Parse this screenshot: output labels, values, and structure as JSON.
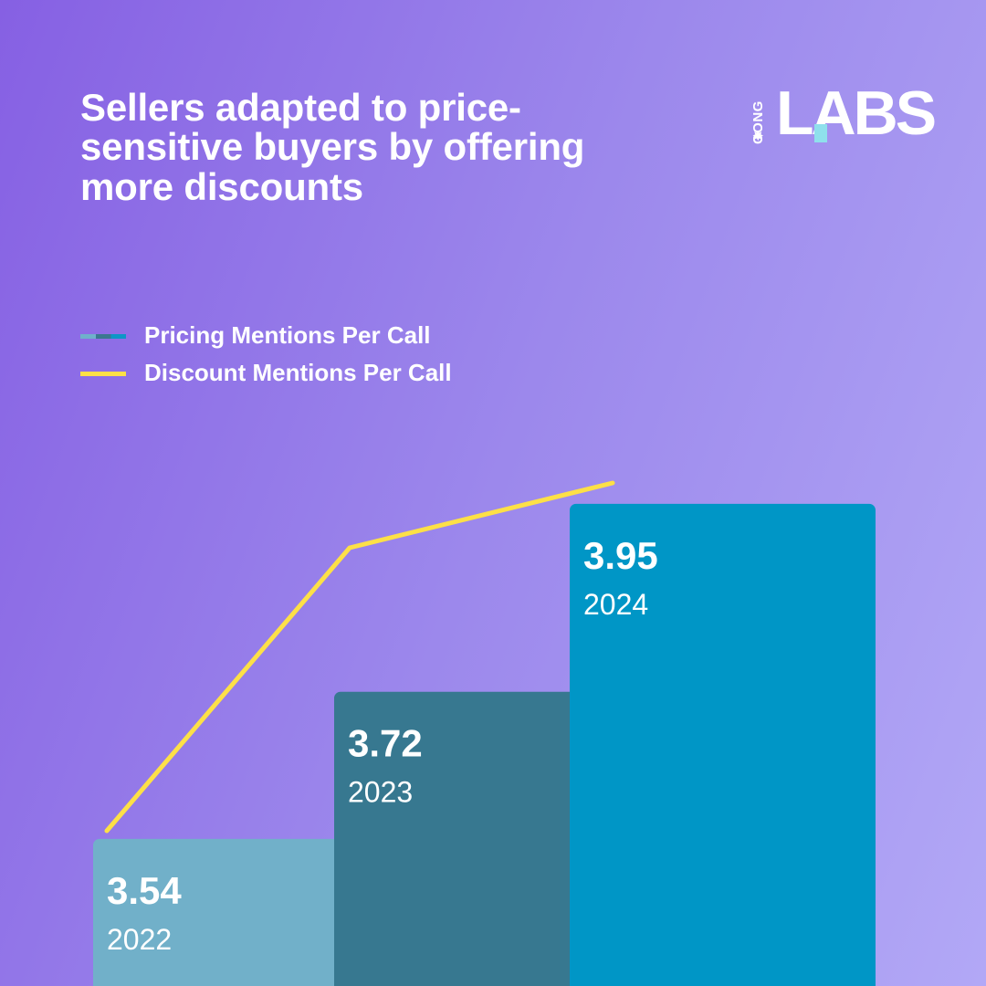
{
  "header": {
    "title": "Sellers adapted to price-sensitive buyers by offering more discounts"
  },
  "logo": {
    "small_text": "GONG",
    "main_text": "LABS",
    "star_icon": "burst-star-icon"
  },
  "legend": [
    {
      "label": "Pricing Mentions Per Call",
      "kind": "bar"
    },
    {
      "label": "Discount Mentions Per Call",
      "kind": "line"
    }
  ],
  "colors": {
    "bar_2022": "#71b0c9",
    "bar_2023": "#377890",
    "bar_2024": "#0096c6",
    "line": "#fde047"
  },
  "chart_data": {
    "type": "bar",
    "categories": [
      "2022",
      "2023",
      "2024"
    ],
    "series": [
      {
        "name": "Pricing Mentions Per Call",
        "type": "bar",
        "values": [
          3.54,
          3.72,
          3.95
        ]
      },
      {
        "name": "Discount Mentions Per Call",
        "type": "line",
        "values": [
          null,
          null,
          null
        ]
      }
    ],
    "value_labels": [
      "3.54",
      "3.72",
      "3.95"
    ],
    "legend": "top-left",
    "grid": false,
    "y_axis_visible": false
  }
}
